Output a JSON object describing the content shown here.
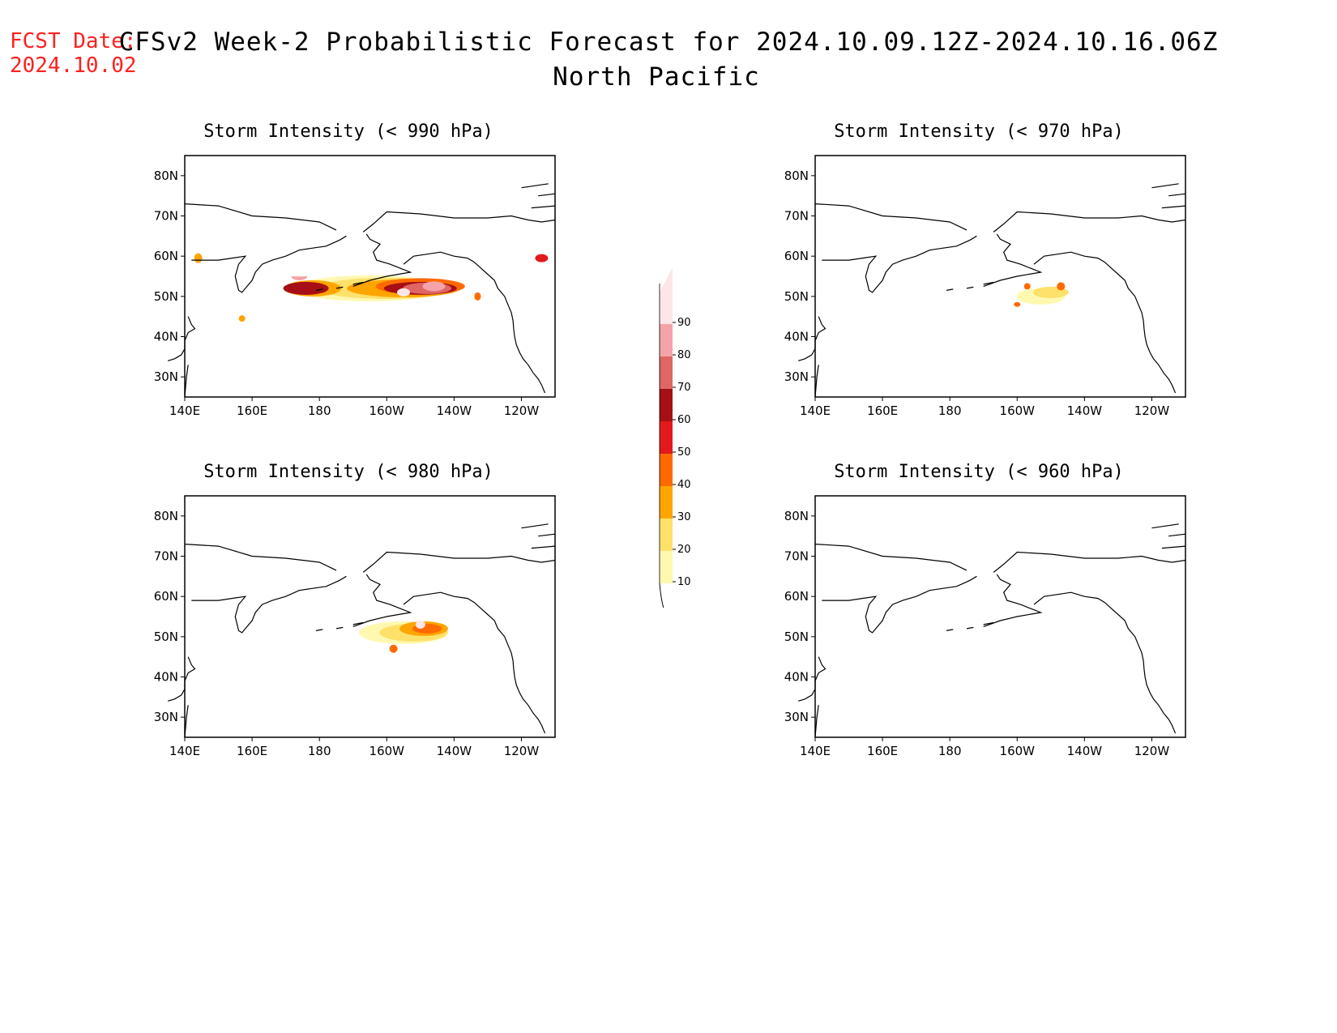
{
  "header": {
    "fcst_label": "FCST Date:",
    "fcst_date": "2024.10.02",
    "title": "CFSv2 Week-2 Probabilistic Forecast for 2024.10.09.12Z-2024.10.16.06Z",
    "region": "North Pacific"
  },
  "axes": {
    "lat_labels": [
      "80N",
      "70N",
      "60N",
      "50N",
      "40N",
      "30N"
    ],
    "lon_labels": [
      "140E",
      "160E",
      "180",
      "160W",
      "140W",
      "120W"
    ]
  },
  "panels": [
    {
      "title": "Storm Intensity (< 990 hPa)",
      "intensity": "high"
    },
    {
      "title": "Storm Intensity (< 970 hPa)",
      "intensity": "low"
    },
    {
      "title": "Storm Intensity (< 980 hPa)",
      "intensity": "mid"
    },
    {
      "title": "Storm Intensity (< 960 hPa)",
      "intensity": "none"
    }
  ],
  "colorbar": {
    "levels": [
      "90",
      "80",
      "70",
      "60",
      "50",
      "40",
      "30",
      "20",
      "10"
    ],
    "colors": [
      "#fde5e8",
      "#f4a3a8",
      "#e06666",
      "#a50f15",
      "#e31a1c",
      "#ff6a00",
      "#ffa500",
      "#fde16a",
      "#fff8b0"
    ]
  }
}
